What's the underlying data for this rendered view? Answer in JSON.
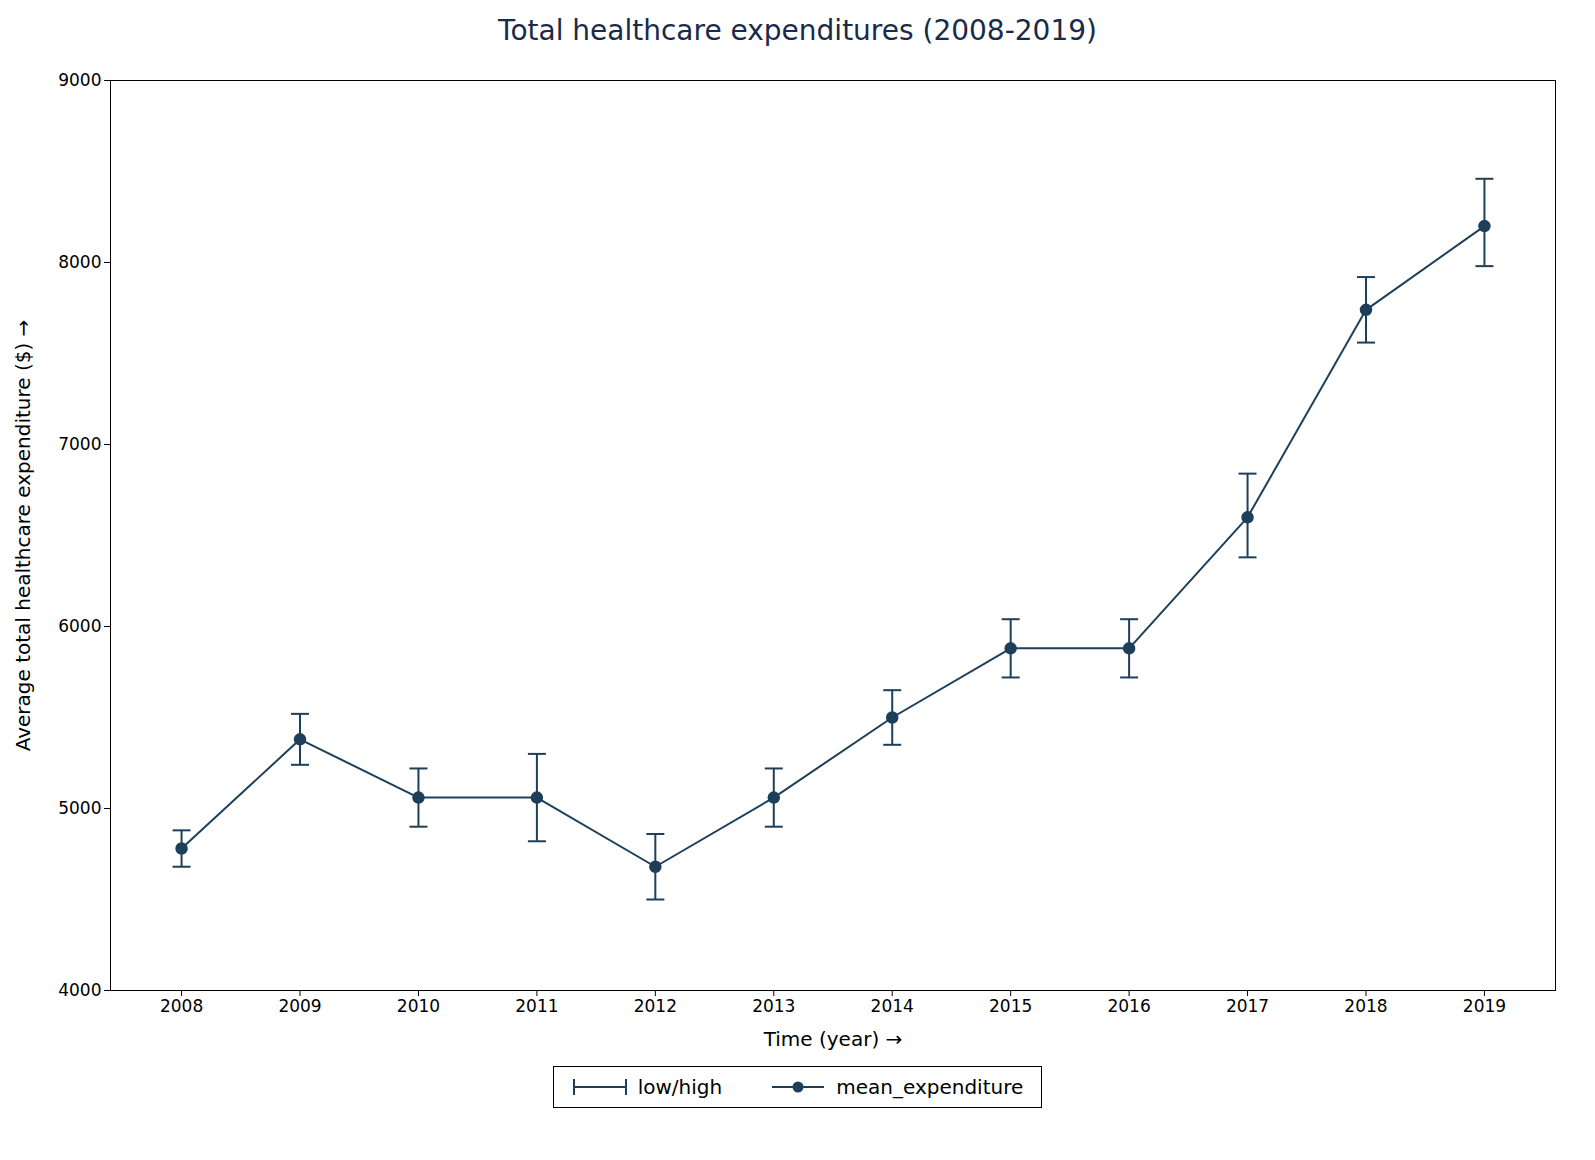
{
  "chart_data": {
    "type": "line",
    "title": "Total healthcare expenditures (2008-2019)",
    "xlabel": "Time (year)",
    "ylabel": "Average total healthcare expenditure ($)",
    "x": [
      2008,
      2009,
      2010,
      2011,
      2012,
      2013,
      2014,
      2015,
      2016,
      2017,
      2018,
      2019
    ],
    "series": [
      {
        "name": "mean_expenditure",
        "color": "#1e3f5a",
        "marker": "circle",
        "line_style": "solid",
        "values": [
          4780,
          5380,
          5060,
          5060,
          4680,
          5060,
          5500,
          5880,
          5880,
          6600,
          7740,
          8200
        ],
        "error_bars": {
          "name": "low/high",
          "lower": [
            4680,
            5240,
            4900,
            4820,
            4500,
            4900,
            5350,
            5720,
            5720,
            6380,
            7560,
            7980
          ],
          "upper": [
            4880,
            5520,
            5220,
            5300,
            4860,
            5220,
            5650,
            6040,
            6040,
            6840,
            7920,
            8460
          ]
        }
      }
    ],
    "xlim": [
      2007.4,
      2019.6
    ],
    "xticks": [
      2008,
      2009,
      2010,
      2011,
      2012,
      2013,
      2014,
      2015,
      2016,
      2017,
      2018,
      2019
    ],
    "ylim": [
      4000,
      9000
    ],
    "yticks": [
      4000,
      5000,
      6000,
      7000,
      8000,
      9000
    ],
    "grid": false,
    "legend": "bottom"
  }
}
